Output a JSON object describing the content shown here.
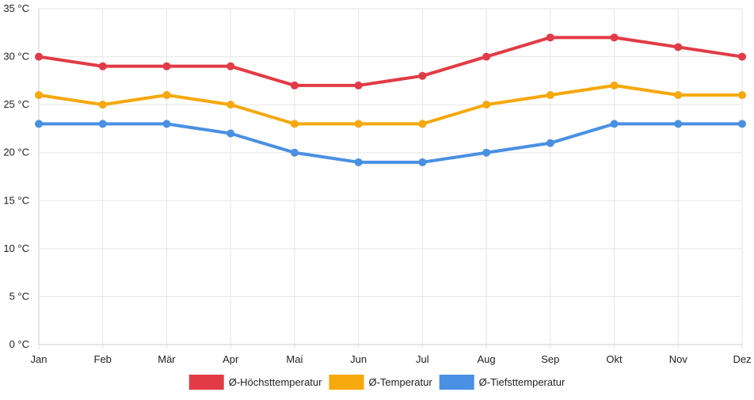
{
  "chart_data": {
    "type": "line",
    "title": "",
    "xlabel": "",
    "ylabel": "",
    "unit": "°C",
    "categories": [
      "Jan",
      "Feb",
      "Mär",
      "Apr",
      "Mai",
      "Jun",
      "Jul",
      "Aug",
      "Sep",
      "Okt",
      "Nov",
      "Dez"
    ],
    "ylim": [
      0,
      35
    ],
    "yticks": [
      0,
      5,
      10,
      15,
      20,
      25,
      30,
      35
    ],
    "ytick_labels": [
      "0 °C",
      "5 °C",
      "10 °C",
      "15 °C",
      "20 °C",
      "25 °C",
      "30 °C",
      "35 °C"
    ],
    "grid": true,
    "legend_position": "bottom",
    "series": [
      {
        "name": "Ø-Höchsttemperatur",
        "color": "#e23b45",
        "values": [
          30,
          29,
          29,
          29,
          27,
          27,
          28,
          30,
          32,
          32,
          31,
          30
        ]
      },
      {
        "name": "Ø-Temperatur",
        "color": "#f6a80c",
        "values": [
          26,
          25,
          26,
          25,
          23,
          23,
          23,
          25,
          26,
          27,
          26,
          26
        ]
      },
      {
        "name": "Ø-Tiefsttemperatur",
        "color": "#4a90e2",
        "values": [
          23,
          23,
          23,
          22,
          20,
          19,
          19,
          20,
          21,
          23,
          23,
          23
        ]
      }
    ]
  }
}
